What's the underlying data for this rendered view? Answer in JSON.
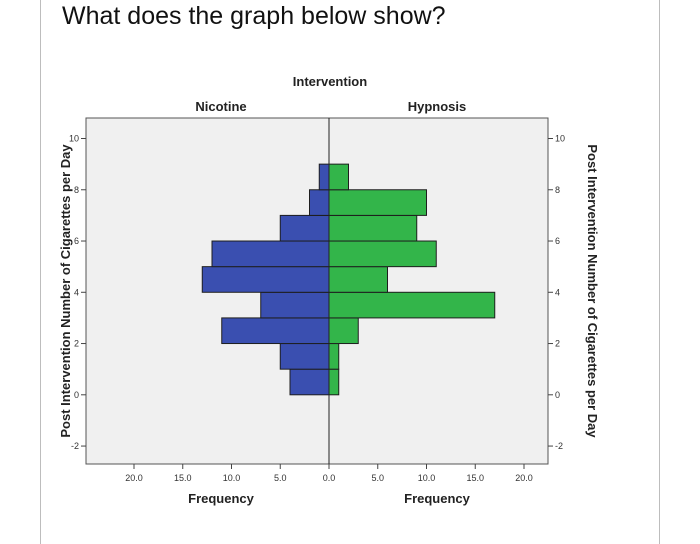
{
  "question": "What does the graph below show?",
  "chart_data": {
    "type": "bar",
    "orientation": "population-pyramid",
    "title": "Intervention",
    "panels": [
      "Nicotine",
      "Hypnosis"
    ],
    "ylabel": "Post Intervention Number of Cigarettes per Day",
    "xlabel": "Frequency",
    "y_range": [
      -2.7,
      10.8
    ],
    "x_range": [
      0,
      20
    ],
    "y_ticks": [
      "10",
      "8",
      "6",
      "4",
      "2",
      "0",
      "-2"
    ],
    "x_ticks": [
      "20.0",
      "15.0",
      "10.0",
      "5.0",
      "0.0",
      "5.0",
      "10.0",
      "15.0",
      "20.0"
    ],
    "bin_width": 1,
    "bins": [
      0,
      1,
      2,
      3,
      4,
      5,
      6,
      7,
      8
    ],
    "series": [
      {
        "name": "Nicotine",
        "color": "#3a4fb0",
        "values": [
          4,
          5,
          11,
          7,
          13,
          12,
          5,
          2,
          1
        ]
      },
      {
        "name": "Hypnosis",
        "color": "#33b54a",
        "values": [
          1,
          1,
          3,
          17,
          6,
          11,
          9,
          10,
          2
        ]
      }
    ],
    "grid": false,
    "background": "#f0f0f0"
  }
}
